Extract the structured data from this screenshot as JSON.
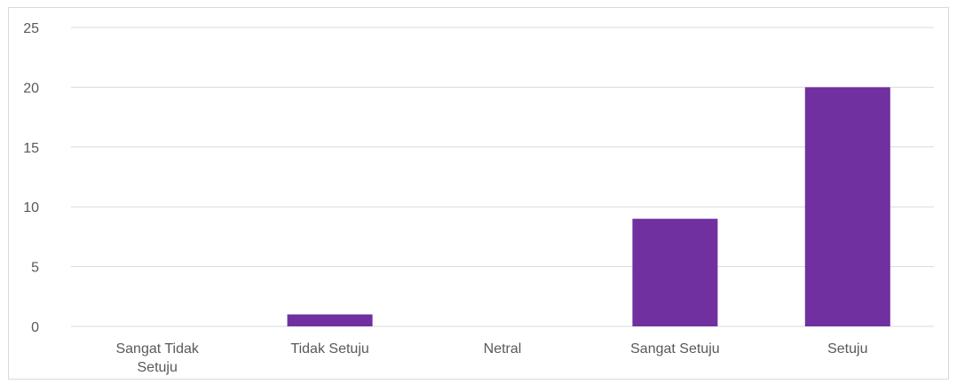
{
  "chart_data": {
    "type": "bar",
    "categories": [
      "Sangat Tidak Setuju",
      "Tidak Setuju",
      "Netral",
      "Sangat Setuju",
      "Setuju"
    ],
    "values": [
      0,
      1,
      0,
      9,
      20
    ],
    "ylim": [
      0,
      25
    ],
    "yticks": [
      0,
      5,
      10,
      15,
      20,
      25
    ],
    "grid": true,
    "bar_color": "#7030a0",
    "grid_color": "#d9d9d9",
    "title": "",
    "xlabel": "",
    "ylabel": ""
  }
}
